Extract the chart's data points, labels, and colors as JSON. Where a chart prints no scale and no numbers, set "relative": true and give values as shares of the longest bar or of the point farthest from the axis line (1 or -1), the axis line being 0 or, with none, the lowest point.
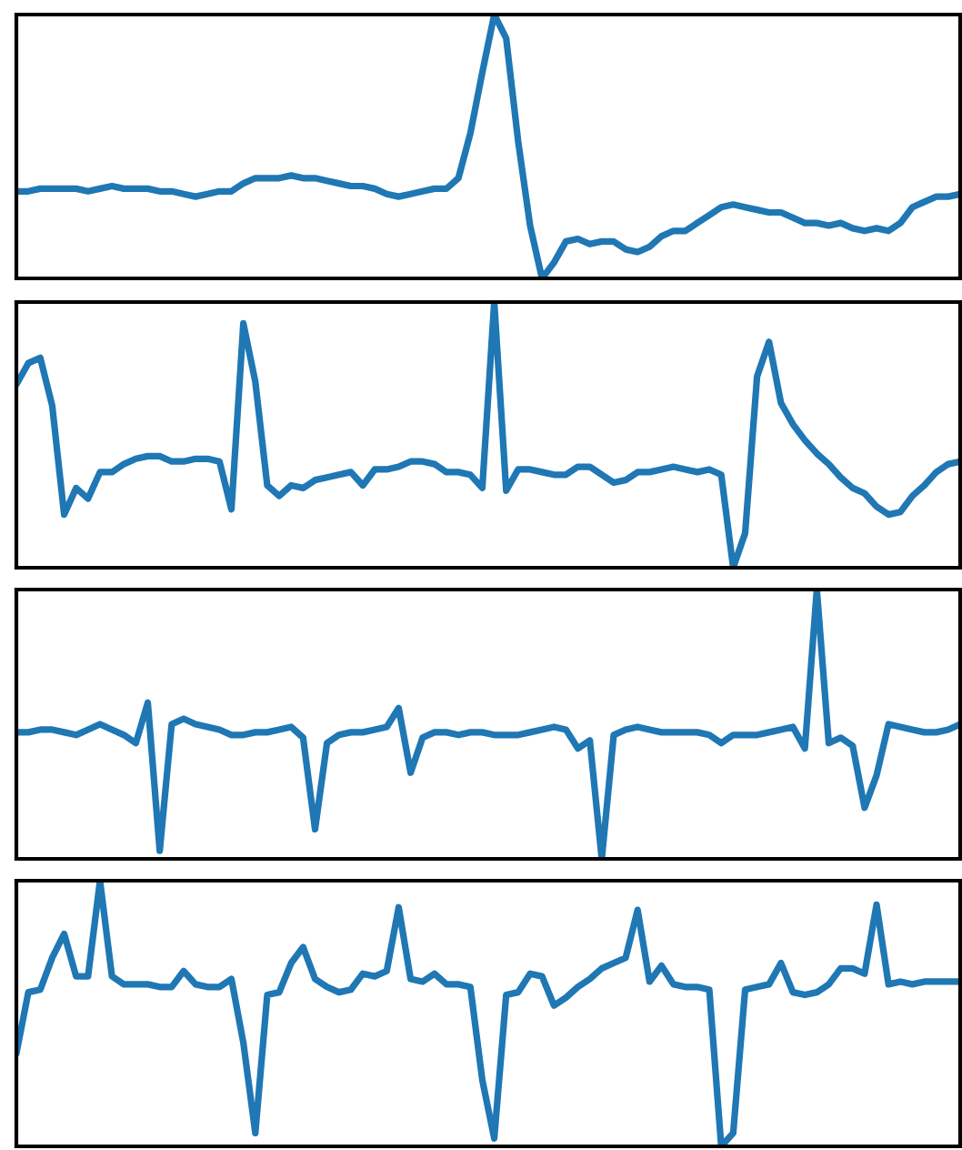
{
  "chart_data": [
    {
      "type": "line",
      "relative": true,
      "tick_labels": false,
      "categories": [
        null,
        null,
        null,
        null,
        null,
        null,
        null,
        null,
        null,
        null,
        null,
        null,
        null,
        null,
        null,
        null,
        null,
        null,
        null,
        null,
        null,
        null,
        null,
        null,
        null,
        null,
        null,
        null,
        null,
        null,
        null,
        null,
        null,
        null,
        null,
        null,
        null,
        null,
        null,
        null,
        null,
        null,
        null,
        null,
        null,
        null,
        null,
        null,
        null,
        null,
        null,
        null,
        null,
        null,
        null,
        null,
        null,
        null,
        null,
        null,
        null,
        null,
        null,
        null,
        null,
        null,
        null,
        null,
        null,
        null,
        null,
        null,
        null,
        null,
        null,
        null,
        null,
        null,
        null,
        null
      ],
      "series": [
        {
          "color": "#1f77b4",
          "values": [
            0.33,
            0.33,
            0.34,
            0.34,
            0.34,
            0.34,
            0.33,
            0.34,
            0.35,
            0.34,
            0.34,
            0.34,
            0.33,
            0.33,
            0.32,
            0.31,
            0.32,
            0.33,
            0.33,
            0.36,
            0.38,
            0.38,
            0.38,
            0.39,
            0.38,
            0.38,
            0.37,
            0.36,
            0.35,
            0.35,
            0.34,
            0.32,
            0.31,
            0.32,
            0.33,
            0.34,
            0.34,
            0.38,
            0.55,
            0.78,
            1.0,
            0.91,
            0.52,
            0.2,
            0.0,
            0.06,
            0.14,
            0.15,
            0.13,
            0.14,
            0.14,
            0.11,
            0.1,
            0.12,
            0.16,
            0.18,
            0.18,
            0.21,
            0.24,
            0.27,
            0.28,
            0.27,
            0.26,
            0.25,
            0.25,
            0.23,
            0.21,
            0.21,
            0.2,
            0.21,
            0.19,
            0.18,
            0.19,
            0.18,
            0.21,
            0.27,
            0.29,
            0.31,
            0.31,
            0.32
          ]
        }
      ]
    },
    {
      "type": "line",
      "relative": true,
      "tick_labels": false,
      "categories": [
        null,
        null,
        null,
        null,
        null,
        null,
        null,
        null,
        null,
        null,
        null,
        null,
        null,
        null,
        null,
        null,
        null,
        null,
        null,
        null,
        null,
        null,
        null,
        null,
        null,
        null,
        null,
        null,
        null,
        null,
        null,
        null,
        null,
        null,
        null,
        null,
        null,
        null,
        null,
        null,
        null,
        null,
        null,
        null,
        null,
        null,
        null,
        null,
        null,
        null,
        null,
        null,
        null,
        null,
        null,
        null,
        null,
        null,
        null,
        null,
        null,
        null,
        null,
        null,
        null,
        null,
        null,
        null,
        null,
        null,
        null,
        null,
        null,
        null,
        null,
        null,
        null,
        null,
        null,
        null
      ],
      "series": [
        {
          "color": "#1f77b4",
          "values": [
            0.69,
            0.77,
            0.79,
            0.61,
            0.2,
            0.3,
            0.26,
            0.36,
            0.36,
            0.39,
            0.41,
            0.42,
            0.42,
            0.4,
            0.4,
            0.41,
            0.41,
            0.4,
            0.22,
            0.92,
            0.7,
            0.31,
            0.27,
            0.31,
            0.3,
            0.33,
            0.34,
            0.35,
            0.36,
            0.31,
            0.37,
            0.37,
            0.38,
            0.4,
            0.4,
            0.39,
            0.36,
            0.36,
            0.35,
            0.3,
            1.0,
            0.29,
            0.37,
            0.37,
            0.36,
            0.35,
            0.35,
            0.38,
            0.38,
            0.35,
            0.32,
            0.33,
            0.36,
            0.36,
            0.37,
            0.38,
            0.37,
            0.36,
            0.37,
            0.35,
            0.0,
            0.13,
            0.72,
            0.85,
            0.62,
            0.54,
            0.48,
            0.43,
            0.39,
            0.34,
            0.3,
            0.28,
            0.23,
            0.2,
            0.21,
            0.27,
            0.31,
            0.36,
            0.39,
            0.4
          ]
        }
      ]
    },
    {
      "type": "line",
      "relative": true,
      "tick_labels": false,
      "categories": [
        null,
        null,
        null,
        null,
        null,
        null,
        null,
        null,
        null,
        null,
        null,
        null,
        null,
        null,
        null,
        null,
        null,
        null,
        null,
        null,
        null,
        null,
        null,
        null,
        null,
        null,
        null,
        null,
        null,
        null,
        null,
        null,
        null,
        null,
        null,
        null,
        null,
        null,
        null,
        null,
        null,
        null,
        null,
        null,
        null,
        null,
        null,
        null,
        null,
        null,
        null,
        null,
        null,
        null,
        null,
        null,
        null,
        null,
        null,
        null,
        null,
        null,
        null,
        null,
        null,
        null,
        null,
        null,
        null,
        null,
        null,
        null,
        null,
        null,
        null,
        null,
        null,
        null,
        null,
        null
      ],
      "series": [
        {
          "color": "#1f77b4",
          "values": [
            0.47,
            0.47,
            0.48,
            0.48,
            0.47,
            0.46,
            0.48,
            0.5,
            0.48,
            0.46,
            0.43,
            0.58,
            0.03,
            0.5,
            0.52,
            0.5,
            0.49,
            0.48,
            0.46,
            0.46,
            0.47,
            0.47,
            0.48,
            0.49,
            0.45,
            0.11,
            0.43,
            0.46,
            0.47,
            0.47,
            0.48,
            0.49,
            0.56,
            0.32,
            0.45,
            0.47,
            0.47,
            0.46,
            0.47,
            0.47,
            0.46,
            0.46,
            0.46,
            0.47,
            0.48,
            0.49,
            0.48,
            0.41,
            0.44,
            0.0,
            0.46,
            0.48,
            0.49,
            0.48,
            0.47,
            0.47,
            0.47,
            0.47,
            0.46,
            0.43,
            0.46,
            0.46,
            0.46,
            0.47,
            0.48,
            0.49,
            0.41,
            1.0,
            0.43,
            0.45,
            0.42,
            0.19,
            0.31,
            0.5,
            0.49,
            0.48,
            0.47,
            0.47,
            0.48,
            0.5
          ]
        }
      ]
    },
    {
      "type": "line",
      "relative": true,
      "tick_labels": false,
      "categories": [
        null,
        null,
        null,
        null,
        null,
        null,
        null,
        null,
        null,
        null,
        null,
        null,
        null,
        null,
        null,
        null,
        null,
        null,
        null,
        null,
        null,
        null,
        null,
        null,
        null,
        null,
        null,
        null,
        null,
        null,
        null,
        null,
        null,
        null,
        null,
        null,
        null,
        null,
        null,
        null,
        null,
        null,
        null,
        null,
        null,
        null,
        null,
        null,
        null,
        null,
        null,
        null,
        null,
        null,
        null,
        null,
        null,
        null,
        null,
        null,
        null,
        null,
        null,
        null,
        null,
        null,
        null,
        null,
        null,
        null,
        null,
        null,
        null,
        null,
        null,
        null,
        null,
        null,
        null,
        null
      ],
      "series": [
        {
          "color": "#1f77b4",
          "values": [
            0.35,
            0.58,
            0.59,
            0.71,
            0.8,
            0.64,
            0.64,
            1.0,
            0.64,
            0.61,
            0.61,
            0.61,
            0.6,
            0.6,
            0.66,
            0.61,
            0.6,
            0.6,
            0.63,
            0.39,
            0.05,
            0.57,
            0.58,
            0.69,
            0.75,
            0.63,
            0.6,
            0.58,
            0.59,
            0.65,
            0.64,
            0.66,
            0.9,
            0.63,
            0.62,
            0.65,
            0.61,
            0.61,
            0.6,
            0.25,
            0.03,
            0.57,
            0.58,
            0.65,
            0.64,
            0.53,
            0.56,
            0.6,
            0.63,
            0.67,
            0.69,
            0.71,
            0.89,
            0.62,
            0.68,
            0.61,
            0.6,
            0.6,
            0.59,
            0.0,
            0.05,
            0.59,
            0.6,
            0.61,
            0.69,
            0.58,
            0.57,
            0.58,
            0.61,
            0.67,
            0.67,
            0.65,
            0.91,
            0.61,
            0.62,
            0.61,
            0.62,
            0.62,
            0.62,
            0.62
          ]
        }
      ]
    }
  ]
}
